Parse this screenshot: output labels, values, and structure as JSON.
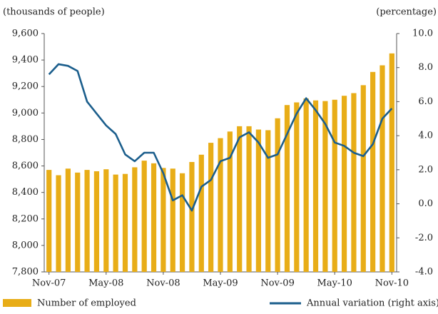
{
  "chart_data": {
    "type": "bar_line",
    "y_axis_label": "(thousands of people)",
    "y2_axis_label": "(percentage)",
    "categories": [
      "Nov-07",
      null,
      null,
      null,
      null,
      null,
      "May-08",
      null,
      null,
      null,
      null,
      null,
      "Nov-08",
      null,
      null,
      null,
      null,
      null,
      "May-09",
      null,
      null,
      null,
      null,
      null,
      "Nov-09",
      null,
      null,
      null,
      null,
      null,
      "May-10",
      null,
      null,
      null,
      null,
      null,
      "Nov-10"
    ],
    "series": [
      {
        "name": "Number of employed",
        "type": "bar",
        "color": "#e8ad17",
        "values": [
          8570,
          8530,
          8580,
          8550,
          8570,
          8560,
          8575,
          8535,
          8540,
          8590,
          8640,
          8620,
          8585,
          8580,
          8545,
          8630,
          8685,
          8775,
          8810,
          8860,
          8900,
          8900,
          8875,
          8870,
          8960,
          9060,
          9080,
          9110,
          9095,
          9090,
          9100,
          9130,
          9150,
          9210,
          9310,
          9360,
          9450
        ]
      },
      {
        "name": "Annual variation (right axis)",
        "type": "line",
        "axis": "y2",
        "color": "#1b5e8c",
        "values": [
          7.6,
          8.2,
          8.1,
          7.8,
          6.0,
          5.3,
          4.6,
          4.1,
          2.9,
          2.5,
          3.0,
          3.0,
          1.8,
          0.2,
          0.5,
          -0.4,
          1.0,
          1.4,
          2.5,
          2.7,
          3.9,
          4.2,
          3.6,
          2.7,
          2.9,
          4.1,
          5.3,
          6.2,
          5.5,
          4.7,
          3.6,
          3.4,
          3.0,
          2.8,
          3.5,
          5.0,
          5.6
        ]
      }
    ],
    "ylim": [
      7800,
      9600
    ],
    "yticks": [
      {
        "value": 7800,
        "label": "7,800"
      },
      {
        "value": 8000,
        "label": "8,000"
      },
      {
        "value": 8200,
        "label": "8,200"
      },
      {
        "value": 8400,
        "label": "8,400"
      },
      {
        "value": 8600,
        "label": "8,600"
      },
      {
        "value": 8800,
        "label": "8,800"
      },
      {
        "value": 9000,
        "label": "9,000"
      },
      {
        "value": 9200,
        "label": "9,200"
      },
      {
        "value": 9400,
        "label": "9,400"
      },
      {
        "value": 9600,
        "label": "9,600"
      }
    ],
    "y2lim": [
      -4,
      10
    ],
    "y2ticks": [
      {
        "value": -4,
        "label": "-4.0"
      },
      {
        "value": -2,
        "label": "-2.0"
      },
      {
        "value": 0,
        "label": "0.0"
      },
      {
        "value": 2,
        "label": "2.0"
      },
      {
        "value": 4,
        "label": "4.0"
      },
      {
        "value": 6,
        "label": "6.0"
      },
      {
        "value": 8,
        "label": "8.0"
      },
      {
        "value": 10,
        "label": "10.0"
      }
    ],
    "legend": "bottom",
    "grid": false
  }
}
